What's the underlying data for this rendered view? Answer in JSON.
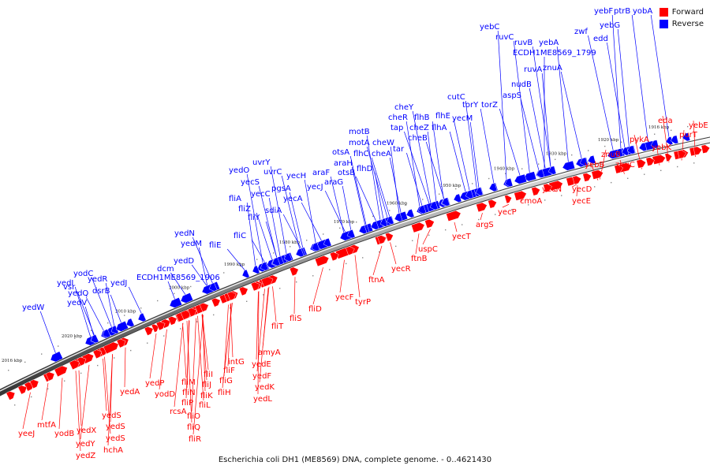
{
  "legend": {
    "forward_label": "Forward",
    "reverse_label": "Reverse",
    "forward_color": "#ff0000",
    "reverse_color": "#0000ff"
  },
  "caption": "Escherichia coli DH1 (ME8569) DNA, complete genome. - 0..4621430",
  "kbp_marks": [
    "1916 kbp",
    "1920 kbp",
    "1930 kbp",
    "1940 kbp",
    "1950 kbp",
    "1960 kbp",
    "1970 kbp",
    "1980 kbp",
    "1990 kbp",
    "2000 kbp",
    "2010 kbp",
    "2020 kbp",
    "2016 kbp"
  ],
  "reverse_genes": [
    "yebF",
    "ptrB",
    "yobA",
    "yebG",
    "edd",
    "zwf",
    "yebC",
    "ruvC",
    "ruvB",
    "yebA",
    "ECDH1ME8569_1799",
    "znuA",
    "ruvA",
    "nudB",
    "aspS",
    "cutC",
    "torY",
    "torZ",
    "yecM",
    "flhE",
    "cheY",
    "flhB",
    "cheR",
    "tap",
    "cheZ",
    "flhA",
    "cheB",
    "tar",
    "motB",
    "motA",
    "cheW",
    "otsA",
    "flhC",
    "cheA",
    "araH",
    "otsB",
    "flhD",
    "uvrY",
    "uvrC",
    "yecH",
    "araF",
    "yecJ",
    "araG",
    "yedO",
    "yecS",
    "yecC",
    "pgsA",
    "yecA",
    "fliA",
    "fliZ",
    "sdiA",
    "fliY",
    "fliC",
    "yedN",
    "yedM",
    "yedD",
    "fliE",
    "dcm",
    "vsr",
    "yodC",
    "yedR",
    "yedI",
    "yedQ",
    "dsrB",
    "yedJ",
    "ECDH1ME8569_1906",
    "yedV",
    "yedW"
  ],
  "forward_genes": [
    "eda",
    "yebE",
    "purT",
    "pykA",
    "yebK",
    "znuB",
    "yebB",
    "znuC",
    "yecD",
    "yecN",
    "yecE",
    "cmoA",
    "yecP",
    "argS",
    "yecT",
    "uspC",
    "ftnB",
    "yecR",
    "ftnA",
    "yecF",
    "tyrP",
    "fliD",
    "fliS",
    "fliT",
    "amyA",
    "yedE",
    "intG",
    "yedF",
    "fliF",
    "fliI",
    "yedK",
    "fliG",
    "fliJ",
    "fliH",
    "yedL",
    "fliM",
    "yedP",
    "fliN",
    "fliK",
    "yodD",
    "fliP",
    "fliL",
    "rcsA",
    "fliO",
    "fliQ",
    "fliR",
    "yedA",
    "yedS",
    "mtfA",
    "yedS",
    "yedX",
    "yeeJ",
    "yodB",
    "yedS",
    "yedY",
    "hchA",
    "yedZ"
  ]
}
